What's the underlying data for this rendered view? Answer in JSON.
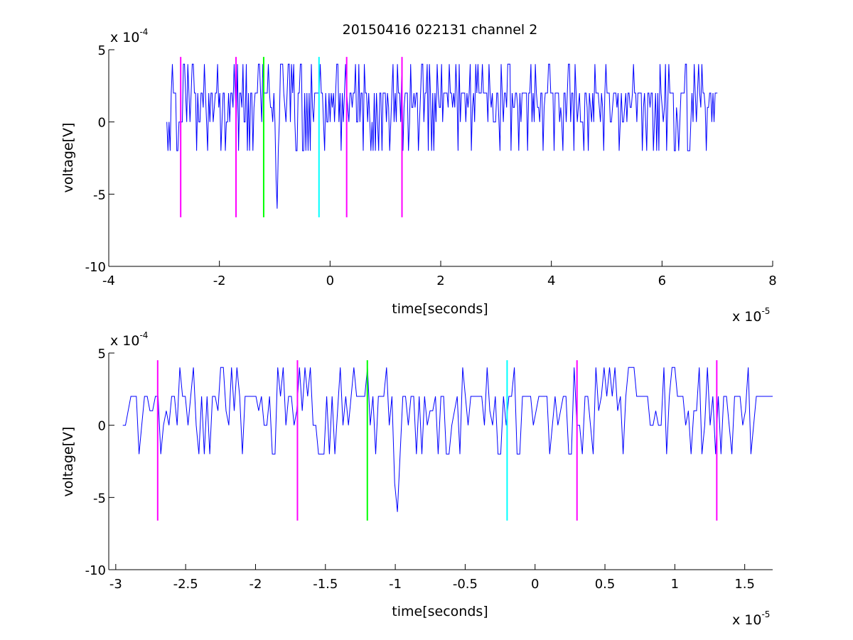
{
  "figure": {
    "title": "20150416 022131 channel 2",
    "background": "#ffffff"
  },
  "chart_data": [
    {
      "type": "line",
      "xlabel": "time[seconds]",
      "ylabel": "voltage[V]",
      "x_multiplier_label": "x 10",
      "x_exponent": "-5",
      "y_multiplier_label": "x 10",
      "y_exponent": "-4",
      "xlim": [
        -4,
        8
      ],
      "ylim": [
        -10,
        5
      ],
      "xticks": [
        -4,
        -2,
        0,
        2,
        4,
        6,
        8
      ],
      "yticks": [
        -10,
        -5,
        0,
        5
      ],
      "xtick_labels": [
        "-4",
        "-2",
        "0",
        "2",
        "4",
        "6",
        "8"
      ],
      "ytick_labels": [
        "-10",
        "-5",
        "0",
        "5"
      ],
      "grid": false,
      "box": "axes on left and bottom only",
      "series": [
        {
          "color": "#0000ff",
          "x_range": [
            -2.95,
            7.0
          ],
          "sample_count": 500,
          "levels": [
            -6,
            -4,
            -2,
            0,
            1,
            2,
            4
          ],
          "baseline": 2,
          "dip": {
            "x": -0.95,
            "y": -6
          },
          "seed": 7
        }
      ],
      "markers": [
        {
          "x": -2.7,
          "color": "#ff00ff",
          "y_range": [
            -6.6,
            4.5
          ]
        },
        {
          "x": -1.7,
          "color": "#ff00ff",
          "y_range": [
            -6.6,
            4.5
          ]
        },
        {
          "x": -1.2,
          "color": "#00ff00",
          "y_range": [
            -6.6,
            4.5
          ]
        },
        {
          "x": -0.2,
          "color": "#00ffff",
          "y_range": [
            -6.6,
            4.5
          ]
        },
        {
          "x": 0.3,
          "color": "#ff00ff",
          "y_range": [
            -6.6,
            4.5
          ]
        },
        {
          "x": 1.3,
          "color": "#ff00ff",
          "y_range": [
            -6.6,
            4.5
          ]
        }
      ]
    },
    {
      "type": "line",
      "xlabel": "time[seconds]",
      "ylabel": "voltage[V]",
      "x_multiplier_label": "x 10",
      "x_exponent": "-5",
      "y_multiplier_label": "x 10",
      "y_exponent": "-4",
      "xlim": [
        -3.05,
        1.7
      ],
      "ylim": [
        -10,
        5
      ],
      "xticks": [
        -3,
        -2.5,
        -2,
        -1.5,
        -1,
        -0.5,
        0,
        0.5,
        1,
        1.5
      ],
      "yticks": [
        -10,
        -5,
        0,
        5
      ],
      "xtick_labels": [
        "-3",
        "-2.5",
        "-2",
        "-1.5",
        "-1",
        "-0.5",
        "0",
        "0.5",
        "1",
        "1.5"
      ],
      "ytick_labels": [
        "-10",
        "-5",
        "0",
        "5"
      ],
      "grid": false,
      "box": "axes on left and bottom only",
      "series": [
        {
          "color": "#0000ff",
          "x_range": [
            -2.95,
            1.7
          ],
          "sample_count": 240,
          "levels": [
            -6,
            -4,
            -2,
            0,
            1,
            2,
            4
          ],
          "baseline": 2,
          "dip": {
            "x": -0.98,
            "y": -6
          },
          "seed": 13
        }
      ],
      "markers": [
        {
          "x": -2.7,
          "color": "#ff00ff",
          "y_range": [
            -6.6,
            4.5
          ]
        },
        {
          "x": -1.7,
          "color": "#ff00ff",
          "y_range": [
            -6.6,
            4.5
          ]
        },
        {
          "x": -1.2,
          "color": "#00ff00",
          "y_range": [
            -6.6,
            4.5
          ]
        },
        {
          "x": -0.2,
          "color": "#00ffff",
          "y_range": [
            -6.6,
            4.5
          ]
        },
        {
          "x": 0.3,
          "color": "#ff00ff",
          "y_range": [
            -6.6,
            4.5
          ]
        },
        {
          "x": 1.3,
          "color": "#ff00ff",
          "y_range": [
            -6.6,
            4.5
          ]
        }
      ]
    }
  ]
}
